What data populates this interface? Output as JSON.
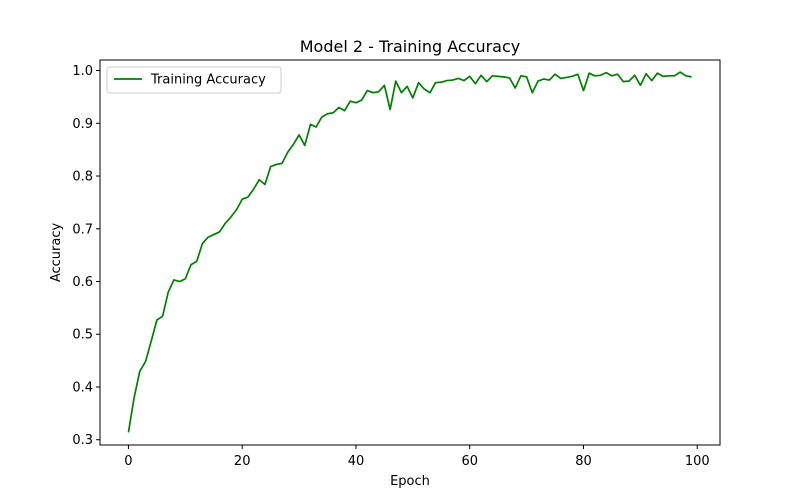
{
  "chart_data": {
    "type": "line",
    "title": "Model 2 - Training Accuracy",
    "xlabel": "Epoch",
    "ylabel": "Accuracy",
    "xlim": [
      -5,
      104
    ],
    "ylim": [
      0.29,
      1.02
    ],
    "xticks": [
      0,
      20,
      40,
      60,
      80,
      100
    ],
    "yticks": [
      0.3,
      0.4,
      0.5,
      0.6,
      0.7,
      0.8,
      0.9,
      1.0
    ],
    "grid": false,
    "legend_position": "top-left",
    "series": [
      {
        "name": "Training Accuracy",
        "color": "#008000",
        "x": [
          0,
          1,
          2,
          3,
          4,
          5,
          6,
          7,
          8,
          9,
          10,
          11,
          12,
          13,
          14,
          15,
          16,
          17,
          18,
          19,
          20,
          21,
          22,
          23,
          24,
          25,
          26,
          27,
          28,
          29,
          30,
          31,
          32,
          33,
          34,
          35,
          36,
          37,
          38,
          39,
          40,
          41,
          42,
          43,
          44,
          45,
          46,
          47,
          48,
          49,
          50,
          51,
          52,
          53,
          54,
          55,
          56,
          57,
          58,
          59,
          60,
          61,
          62,
          63,
          64,
          65,
          66,
          67,
          68,
          69,
          70,
          71,
          72,
          73,
          74,
          75,
          76,
          77,
          78,
          79,
          80,
          81,
          82,
          83,
          84,
          85,
          86,
          87,
          88,
          89,
          90,
          91,
          92,
          93,
          94,
          95,
          96,
          97,
          98,
          99
        ],
        "values": [
          0.314,
          0.38,
          0.43,
          0.448,
          0.487,
          0.527,
          0.534,
          0.58,
          0.603,
          0.6,
          0.605,
          0.632,
          0.638,
          0.672,
          0.684,
          0.689,
          0.694,
          0.71,
          0.722,
          0.736,
          0.756,
          0.76,
          0.775,
          0.793,
          0.784,
          0.818,
          0.822,
          0.824,
          0.845,
          0.86,
          0.878,
          0.858,
          0.898,
          0.893,
          0.912,
          0.918,
          0.92,
          0.93,
          0.924,
          0.942,
          0.939,
          0.944,
          0.962,
          0.958,
          0.96,
          0.972,
          0.926,
          0.98,
          0.958,
          0.97,
          0.948,
          0.977,
          0.965,
          0.958,
          0.977,
          0.978,
          0.981,
          0.982,
          0.985,
          0.981,
          0.989,
          0.975,
          0.991,
          0.979,
          0.99,
          0.989,
          0.988,
          0.986,
          0.967,
          0.99,
          0.988,
          0.958,
          0.98,
          0.984,
          0.982,
          0.993,
          0.985,
          0.987,
          0.989,
          0.993,
          0.962,
          0.995,
          0.99,
          0.991,
          0.996,
          0.99,
          0.993,
          0.979,
          0.98,
          0.991,
          0.972,
          0.994,
          0.981,
          0.995,
          0.989,
          0.99,
          0.99,
          0.997,
          0.99,
          0.988
        ]
      }
    ]
  }
}
